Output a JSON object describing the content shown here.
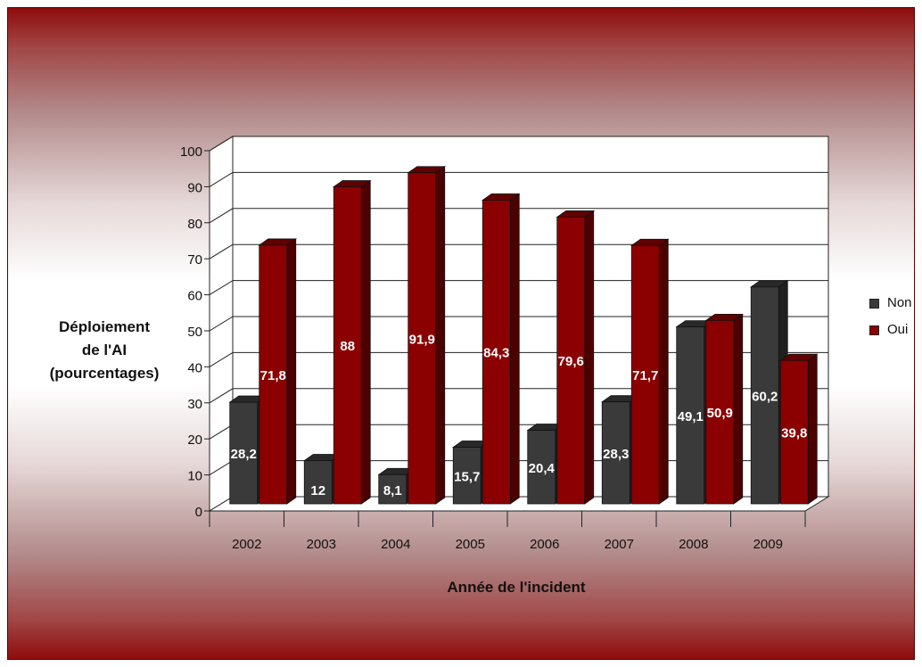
{
  "chart_data": {
    "type": "bar",
    "title": "",
    "xlabel": "Année de l'incident",
    "ylabel_lines": [
      "Déploiement",
      "de l'AI",
      "(pourcentages)"
    ],
    "categories": [
      "2002",
      "2003",
      "2004",
      "2005",
      "2006",
      "2007",
      "2008",
      "2009"
    ],
    "series": [
      {
        "name": "Non",
        "color": "#3a3a3a",
        "values": [
          28.2,
          12,
          8.1,
          15.7,
          20.4,
          28.3,
          49.1,
          60.2
        ],
        "labels": [
          "28,2",
          "12",
          "8,1",
          "15,7",
          "20,4",
          "28,3",
          "49,1",
          "60,2"
        ]
      },
      {
        "name": "Oui",
        "color": "#8b0000",
        "values": [
          71.8,
          88,
          91.9,
          84.3,
          79.6,
          71.7,
          50.9,
          39.8
        ],
        "labels": [
          "71,8",
          "88",
          "91,9",
          "84,3",
          "79,6",
          "71,7",
          "50,9",
          "39,8"
        ]
      }
    ],
    "ylim": [
      0,
      100
    ],
    "yticks": [
      0,
      10,
      20,
      30,
      40,
      50,
      60,
      70,
      80,
      90,
      100
    ],
    "grid": true,
    "three_d": true,
    "legend": "right"
  }
}
